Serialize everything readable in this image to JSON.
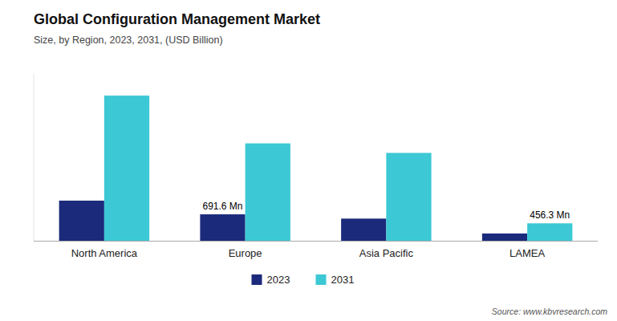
{
  "chart_data": {
    "type": "bar",
    "title": "Global Configuration Management Market",
    "subtitle": "Size, by Region, 2023, 2031, (USD Billion)",
    "source": "Source: www.kbvresearch.com",
    "categories": [
      "North America",
      "Europe",
      "Asia Pacific",
      "LAMEA"
    ],
    "series": [
      {
        "name": "2023",
        "color": "#1b2a7b",
        "values": [
          1.05,
          0.6916,
          0.58,
          0.19
        ]
      },
      {
        "name": "2031",
        "color": "#3cc8d5",
        "values": [
          3.8,
          2.55,
          2.3,
          0.4563
        ]
      }
    ],
    "annotations": [
      {
        "text": "691.6 Mn",
        "series": "2023",
        "category": "Europe"
      },
      {
        "text": "456.3 Mn",
        "series": "2031",
        "category": "LAMEA"
      }
    ],
    "ylim": [
      0,
      4.37
    ],
    "tick_labels": "x",
    "grid": false,
    "legend": "bottom"
  }
}
